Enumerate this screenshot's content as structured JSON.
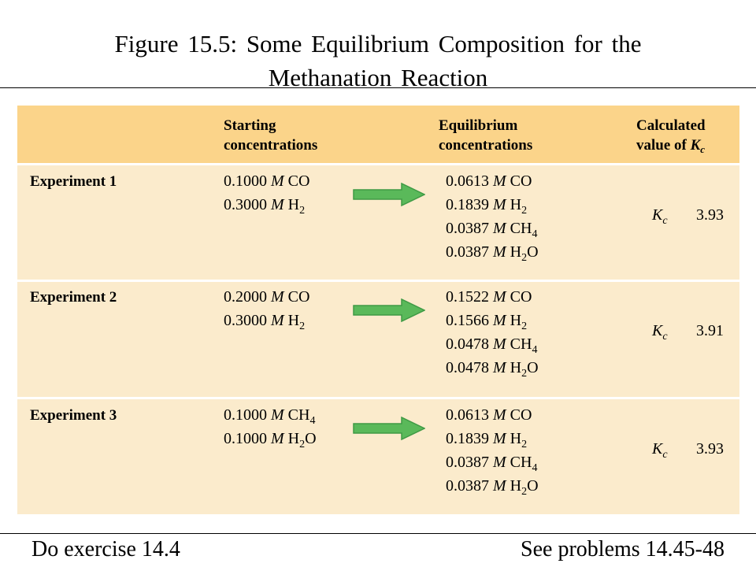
{
  "title": {
    "line1": "Figure 15.5: Some Equilibrium Composition for the",
    "line2": "Methanation Reaction"
  },
  "table": {
    "headers": {
      "starting": [
        "Starting",
        "concentrations"
      ],
      "equilibrium": [
        "Equilibrium",
        "concentrations"
      ],
      "calculated_prefix": "Calculated",
      "calculated_line2": "value of ",
      "calculated_symbol": "K",
      "calculated_sub": "c"
    },
    "molarity_symbol": "M",
    "kc_symbol": "K",
    "kc_sub": "c",
    "experiments": [
      {
        "label": "Experiment 1",
        "starting": [
          {
            "value": "0.1000",
            "species": "CO",
            "sub": "",
            "tail": ""
          },
          {
            "value": "0.3000",
            "species": "H",
            "sub": "2",
            "tail": ""
          }
        ],
        "equilibrium": [
          {
            "value": "0.0613",
            "species": "CO",
            "sub": "",
            "tail": ""
          },
          {
            "value": "0.1839",
            "species": "H",
            "sub": "2",
            "tail": ""
          },
          {
            "value": "0.0387",
            "species": "CH",
            "sub": "4",
            "tail": ""
          },
          {
            "value": "0.0387",
            "species": "H",
            "sub": "2",
            "tail": "O"
          }
        ],
        "kc_value": "3.93"
      },
      {
        "label": "Experiment 2",
        "starting": [
          {
            "value": "0.2000",
            "species": "CO",
            "sub": "",
            "tail": ""
          },
          {
            "value": "0.3000",
            "species": "H",
            "sub": "2",
            "tail": ""
          }
        ],
        "equilibrium": [
          {
            "value": "0.1522",
            "species": "CO",
            "sub": "",
            "tail": ""
          },
          {
            "value": "0.1566",
            "species": "H",
            "sub": "2",
            "tail": ""
          },
          {
            "value": "0.0478",
            "species": "CH",
            "sub": "4",
            "tail": ""
          },
          {
            "value": "0.0478",
            "species": "H",
            "sub": "2",
            "tail": "O"
          }
        ],
        "kc_value": "3.91"
      },
      {
        "label": "Experiment 3",
        "starting": [
          {
            "value": "0.1000",
            "species": "CH",
            "sub": "4",
            "tail": ""
          },
          {
            "value": "0.1000",
            "species": "H",
            "sub": "2",
            "tail": "O"
          }
        ],
        "equilibrium": [
          {
            "value": "0.0613",
            "species": "CO",
            "sub": "",
            "tail": ""
          },
          {
            "value": "0.1839",
            "species": "H",
            "sub": "2",
            "tail": ""
          },
          {
            "value": "0.0387",
            "species": "CH",
            "sub": "4",
            "tail": ""
          },
          {
            "value": "0.0387",
            "species": "H",
            "sub": "2",
            "tail": "O"
          }
        ],
        "kc_value": "3.93"
      }
    ],
    "colors": {
      "header_bg": "#fbd48a",
      "body_bg": "#fbebcc",
      "arrow_fill": "#5ab95a",
      "arrow_stroke": "#3f9a45"
    },
    "arrow_icon": "right-arrow-icon"
  },
  "footer": {
    "left": "Do exercise 14.4",
    "right": "See problems 14.45-48"
  }
}
